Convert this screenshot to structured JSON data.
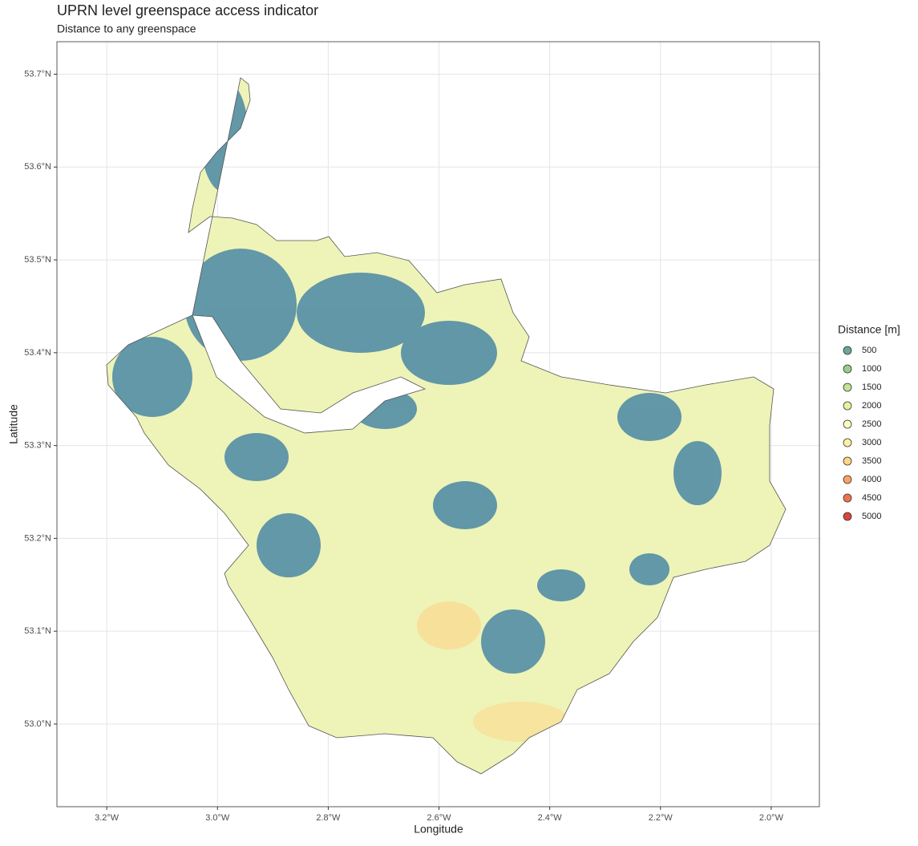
{
  "chart_data": {
    "type": "map",
    "title": "UPRN level greenspace access indicator",
    "subtitle": "Distance to any greenspace",
    "x_label": "Longitude",
    "y_label": "Latitude",
    "xlim": [
      -3.29,
      -1.913
    ],
    "ylim": [
      52.911,
      53.735
    ],
    "xticks": [
      {
        "value": -3.2,
        "label": "3.2°W"
      },
      {
        "value": -3.0,
        "label": "3.0°W"
      },
      {
        "value": -2.8,
        "label": "2.8°W"
      },
      {
        "value": -2.6,
        "label": "2.6°W"
      },
      {
        "value": -2.4,
        "label": "2.4°W"
      },
      {
        "value": -2.2,
        "label": "2.2°W"
      },
      {
        "value": -2.0,
        "label": "2.0°W"
      }
    ],
    "yticks": [
      {
        "value": 53.0,
        "label": "53.0°N"
      },
      {
        "value": 53.1,
        "label": "53.1°N"
      },
      {
        "value": 53.2,
        "label": "53.2°N"
      },
      {
        "value": 53.3,
        "label": "53.3°N"
      },
      {
        "value": 53.4,
        "label": "53.4°N"
      },
      {
        "value": 53.5,
        "label": "53.5°N"
      },
      {
        "value": 53.6,
        "label": "53.6°N"
      },
      {
        "value": 53.7,
        "label": "53.7°N"
      }
    ],
    "grid": true,
    "legend": {
      "title": "Distance [m]",
      "values": [
        500,
        1000,
        1500,
        2000,
        2500,
        3000,
        3500,
        4000,
        4500,
        5000
      ],
      "colors": [
        "#6ba59b",
        "#98cf88",
        "#c6e295",
        "#e6f29e",
        "#fbfcbe",
        "#fdf0a4",
        "#fdd585",
        "#f9a361",
        "#ef7350",
        "#d9453d"
      ]
    }
  }
}
